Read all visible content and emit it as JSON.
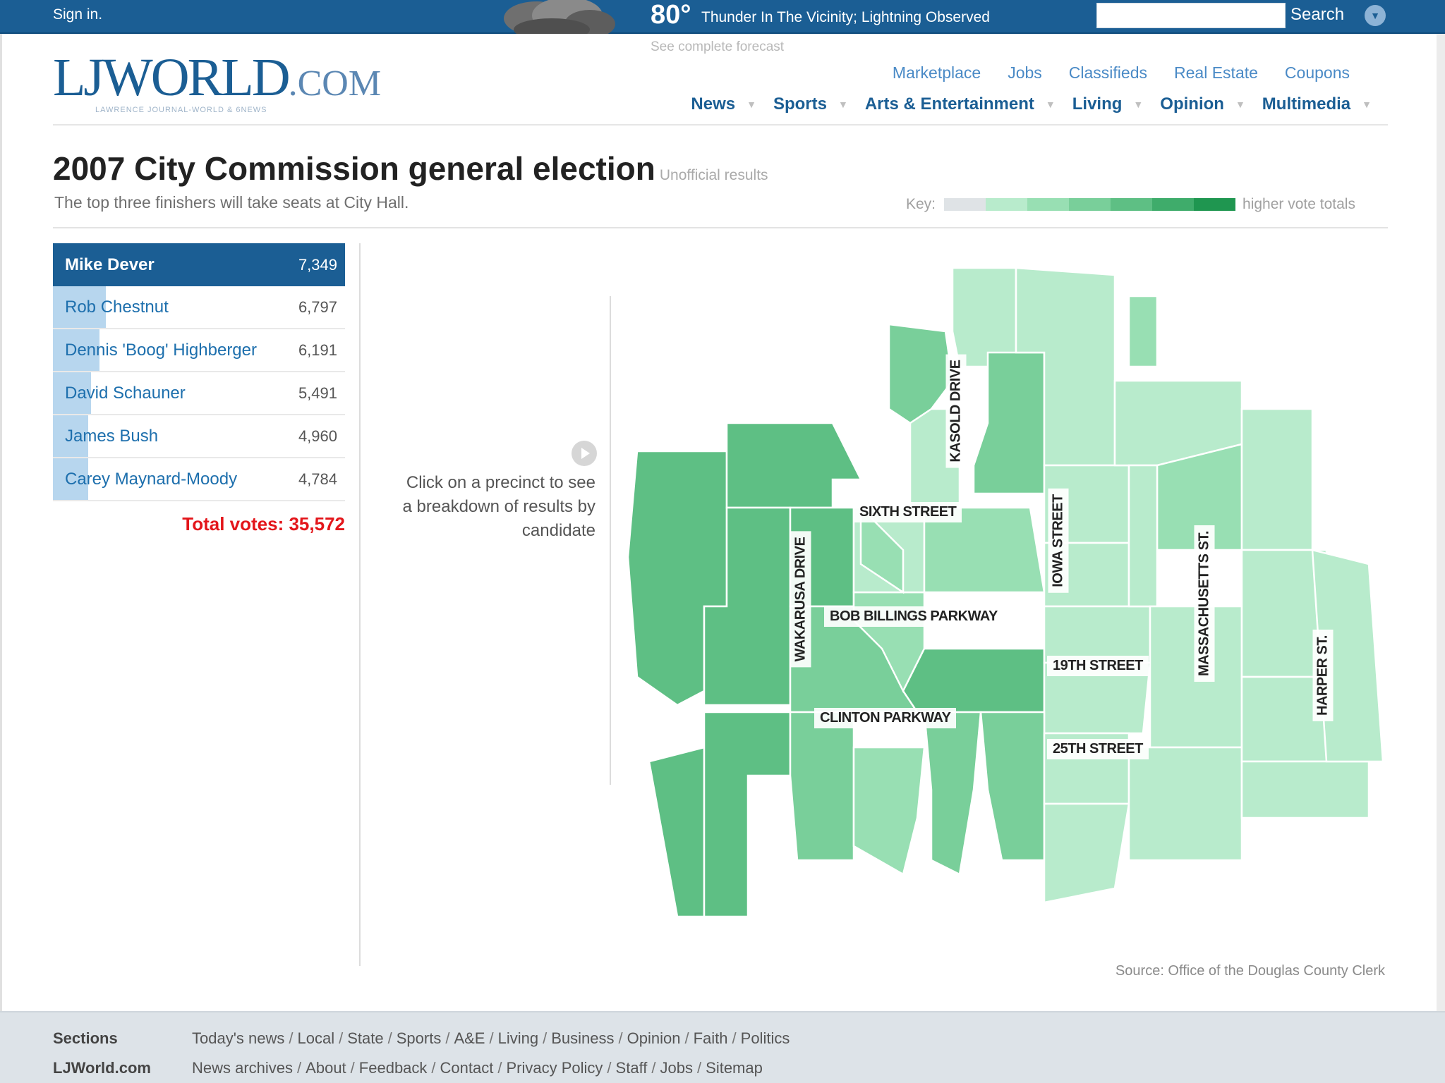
{
  "topbar": {
    "signin": "Sign in.",
    "temperature": "80°",
    "condition": "Thunder In The Vicinity; Lightning Observed",
    "forecast_link": "See complete forecast",
    "search_value": "",
    "search_label": "Search"
  },
  "logo": {
    "main": "LJWORLD",
    "com": ".COM",
    "sub": "LAWRENCE JOURNAL-WORLD & 6NEWS"
  },
  "subnav": [
    "Marketplace",
    "Jobs",
    "Classifieds",
    "Real Estate",
    "Coupons"
  ],
  "mainnav": [
    "News",
    "Sports",
    "Arts & Entertainment",
    "Living",
    "Opinion",
    "Multimedia"
  ],
  "page": {
    "title": "2007 City Commission general election",
    "unofficial": "Unofficial results",
    "subtitle": "The top three finishers will take seats at City Hall.",
    "key_label": "Key:",
    "key_high": "higher vote totals",
    "key_colors": [
      "#dfe3e6",
      "#b8ebcc",
      "#98dfb3",
      "#79cf9a",
      "#5ebf84",
      "#3fac6b",
      "#1f9650"
    ]
  },
  "candidates": [
    {
      "name": "Mike  Dever",
      "votes": "7,349",
      "share": 1.0
    },
    {
      "name": "Rob Chestnut",
      "votes": "6,797",
      "share": 0.18
    },
    {
      "name": "Dennis 'Boog' Highberger",
      "votes": "6,191",
      "share": 0.16
    },
    {
      "name": "David  Schauner",
      "votes": "5,491",
      "share": 0.13
    },
    {
      "name": "James  Bush",
      "votes": "4,960",
      "share": 0.12
    },
    {
      "name": "Carey  Maynard-Moody",
      "votes": "4,784",
      "share": 0.12
    }
  ],
  "total": "Total votes: 35,572",
  "hint": "Click on a precinct to see a breakdown of results by candidate",
  "streets": {
    "sixth": "SIXTH STREET",
    "bob": "BOB BILLINGS PARKWAY",
    "clinton": "CLINTON PARKWAY",
    "nineteenth": "19TH STREET",
    "twentyfifth": "25TH STREET",
    "kasold": "KASOLD DRIVE",
    "wakarusa": "WAKARUSA DRIVE",
    "iowa": "IOWA STREET",
    "mass": "MASSACHUSETTS ST.",
    "harper": "HARPER ST."
  },
  "map_colors": {
    "dark": "#5ebf84",
    "mid": "#79cf9a",
    "light": "#98dfb3",
    "pale": "#b8ebcc"
  },
  "source": "Source: Office of the Douglas County Clerk",
  "footer": {
    "sections_label": "Sections",
    "sections": [
      "Today's news",
      "Local",
      "State",
      "Sports",
      "A&E",
      "Living",
      "Business",
      "Opinion",
      "Faith",
      "Politics"
    ],
    "site_label": "LJWorld.com",
    "site": [
      "News archives",
      "About",
      "Feedback",
      "Contact",
      "Privacy Policy",
      "Staff",
      "Jobs",
      "Sitemap"
    ]
  }
}
